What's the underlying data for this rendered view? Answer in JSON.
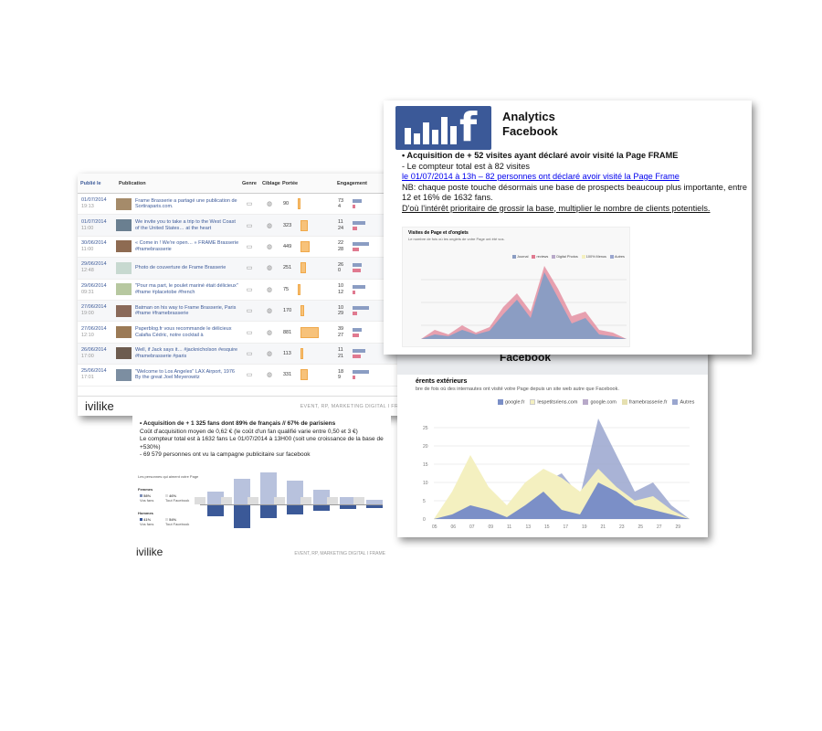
{
  "table": {
    "headers": [
      "Publié le",
      "Publication",
      "Genre",
      "Ciblage",
      "Portée",
      "Engagement"
    ],
    "rows": [
      {
        "date": "01/07/2014",
        "time": "19:13",
        "text": "Frame Brasserie a partagé une publication de Sortiraparis.com.",
        "reach": "90",
        "e1": "73",
        "e2": "4"
      },
      {
        "date": "01/07/2014",
        "time": "11:00",
        "text": "We invite you to take a trip to the West Coast of the United States… at the heart",
        "reach": "323",
        "e1": "11",
        "e2": "24"
      },
      {
        "date": "30/06/2014",
        "time": "11:00",
        "text": "« Come in ! We're open… » FRAME Brasserie #framebrasserie",
        "reach": "449",
        "e1": "22",
        "e2": "28"
      },
      {
        "date": "29/06/2014",
        "time": "12:48",
        "text": "Photo de couverture de Frame Brasserie",
        "reach": "251",
        "e1": "26",
        "e2": "0"
      },
      {
        "date": "29/06/2014",
        "time": "09:31",
        "text": "\"Pour ma part, le poulet mariné était délicieux\" #frame #placetobe #french",
        "reach": "75",
        "e1": "10",
        "e2": "12"
      },
      {
        "date": "27/06/2014",
        "time": "19:00",
        "text": "Batman on his way to Frame Brasserie, Paris #frame #framebrasserie",
        "reach": "170",
        "e1": "10",
        "e2": "29"
      },
      {
        "date": "27/06/2014",
        "time": "12:10",
        "text": "Paperblog.fr vous recommande le délicieux Calafia Cédric, notre cocktail à",
        "reach": "881",
        "e1": "39",
        "e2": "27"
      },
      {
        "date": "26/06/2014",
        "time": "17:00",
        "text": "Well, if Jack says it… #jacknicholson #esquire #framebrasserie #paris",
        "reach": "113",
        "e1": "11",
        "e2": "21"
      },
      {
        "date": "25/06/2014",
        "time": "17:01",
        "text": "\"Welcome to Los Angeles\" LAX Airport, 1976 By the great Joel Meyerowitz",
        "reach": "331",
        "e1": "18",
        "e2": "9"
      }
    ],
    "reach_values": [
      90,
      323,
      449,
      251,
      75,
      170,
      881,
      113,
      331
    ]
  },
  "brand": {
    "logo": "ivilike",
    "footer": "EVENT, RP, MARKETING DIGITAL  I  FRAME"
  },
  "fans": {
    "lines": [
      "• Acquisition de + 1 325 fans dont 89% de français // 67% de parisiens",
      "Coût d'acquisition moyen de 0,62 € (le coût d'un fan qualifié varie entre 0,50 et 3 €)",
      "Le compteur total est à 1632 fans Le 01/07/2014 à 13H00 (soit une croissance de la base de +530%)",
      " - 69 579 personnes ont vu la campagne publicitaire sur facebook"
    ],
    "demo_title": "Les personnes qui aiment votre Page",
    "femmes": "Femmes",
    "femmes_pct": "58%",
    "femmes_fb": "46%",
    "hommes": "Hommes",
    "hommes_pct": "41%",
    "hommes_fb": "54%",
    "vos_fans": "Vos fans",
    "tout_fb": "Tout Facebook",
    "footer": "EVENT, RP, MARKETING DIGITAL  I  FRAME"
  },
  "referrers": {
    "header": "Facebook",
    "title": "érents extérieurs",
    "subtitle": "bre de fois où des internautes ont visité votre Page depuis un site web autre que Facebook.",
    "legend": [
      "google.fr",
      "lespetitsriens.com",
      "google.com",
      "framebrasserie.fr",
      "Autres"
    ],
    "colors": [
      "#7b8fc7",
      "#f4f0c0",
      "#b8a9c9",
      "#e6e0b0",
      "#9aa6cf"
    ],
    "yticks": [
      "0",
      "5",
      "10",
      "15",
      "20",
      "25"
    ],
    "xticks": [
      "05",
      "06",
      "07",
      "09",
      "11",
      "13",
      "15",
      "17",
      "19",
      "21",
      "23",
      "25",
      "27",
      "29"
    ]
  },
  "analytics": {
    "title1": "Analytics",
    "title2": "Facebook",
    "line1": "• Acquisition de + 52 visites ayant déclaré avoir visité la Page FRAME",
    "line2": "- Le compteur total est à 82 visites",
    "line3": "le 01/07/2014 à 13h – 82 personnes ont déclaré avoir visité la Page Frame",
    "line4": "NB: chaque poste touche désormais une base de prospects beaucoup plus importante, entre 12 et 16% de 1632 fans.",
    "line5": "D'où l'intérêt prioritaire de grossir la base, multiplier le nombre de clients potentiels.",
    "chart_title": "Visites de Page et d'onglets",
    "chart_sub": "Le nombre de fois où les onglets de votre Page ont été vus.",
    "legend": [
      "Journal",
      "reviews",
      "Digital Photos",
      "100% Menus",
      "Autres"
    ]
  }
}
